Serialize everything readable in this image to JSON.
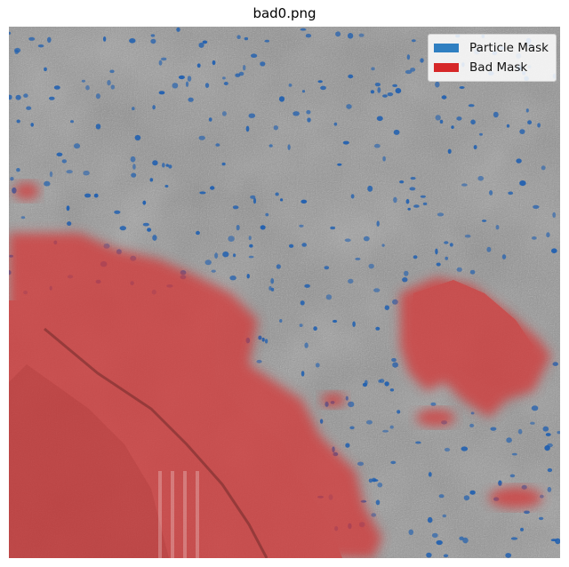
{
  "title": "bad0.png",
  "legend": [
    {
      "label": "Particle Mask",
      "color": "#2f7fc1"
    },
    {
      "label": "Bad Mask",
      "color": "#d62728"
    }
  ],
  "image": {
    "background_color": "#8f8f8f",
    "particle_color": "#1f5fb0",
    "bad_mask_color": "#d33a3a"
  }
}
